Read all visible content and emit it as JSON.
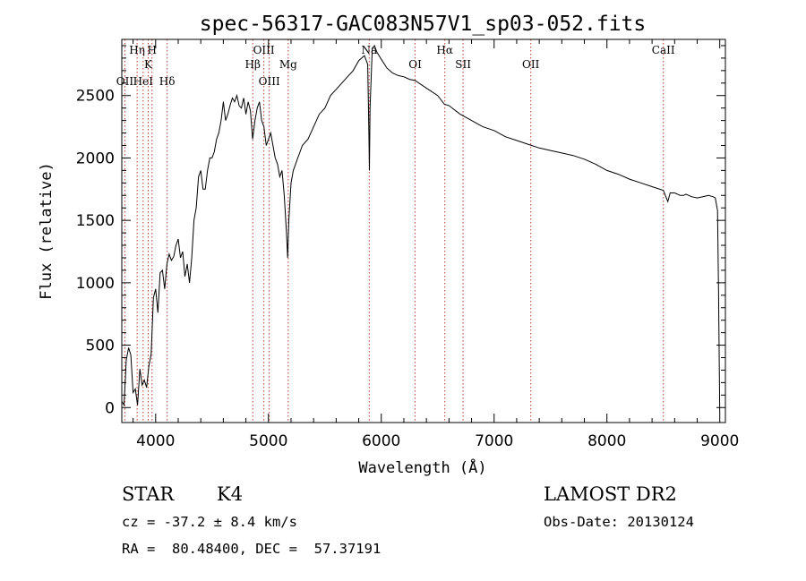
{
  "chart_data": {
    "type": "line",
    "title": "spec-56317-GAC083N57V1_sp03-052.fits",
    "xlabel": "Wavelength (Å)",
    "ylabel": "Flux (relative)",
    "xlim": [
      3700,
      9050
    ],
    "ylim": [
      -120,
      2950
    ],
    "xticks": [
      4000,
      5000,
      6000,
      7000,
      8000,
      9000
    ],
    "yticks": [
      0,
      500,
      1000,
      1500,
      2000,
      2500
    ],
    "grid": false,
    "series": [
      {
        "name": "spectrum",
        "points": [
          [
            3700,
            50
          ],
          [
            3720,
            20
          ],
          [
            3740,
            380
          ],
          [
            3760,
            480
          ],
          [
            3780,
            420
          ],
          [
            3800,
            120
          ],
          [
            3820,
            150
          ],
          [
            3840,
            20
          ],
          [
            3860,
            310
          ],
          [
            3880,
            180
          ],
          [
            3900,
            220
          ],
          [
            3920,
            160
          ],
          [
            3940,
            330
          ],
          [
            3960,
            430
          ],
          [
            3980,
            880
          ],
          [
            4000,
            950
          ],
          [
            4020,
            760
          ],
          [
            4040,
            1080
          ],
          [
            4060,
            1100
          ],
          [
            4080,
            950
          ],
          [
            4100,
            1150
          ],
          [
            4120,
            1230
          ],
          [
            4140,
            1180
          ],
          [
            4160,
            1210
          ],
          [
            4180,
            1300
          ],
          [
            4200,
            1350
          ],
          [
            4220,
            1200
          ],
          [
            4240,
            1250
          ],
          [
            4260,
            1050
          ],
          [
            4280,
            1150
          ],
          [
            4300,
            1000
          ],
          [
            4320,
            1200
          ],
          [
            4340,
            1500
          ],
          [
            4360,
            1600
          ],
          [
            4380,
            1850
          ],
          [
            4400,
            1900
          ],
          [
            4420,
            1750
          ],
          [
            4440,
            1750
          ],
          [
            4460,
            1900
          ],
          [
            4480,
            2000
          ],
          [
            4500,
            2000
          ],
          [
            4520,
            2050
          ],
          [
            4540,
            2150
          ],
          [
            4560,
            2200
          ],
          [
            4580,
            2300
          ],
          [
            4600,
            2450
          ],
          [
            4620,
            2300
          ],
          [
            4640,
            2350
          ],
          [
            4660,
            2420
          ],
          [
            4680,
            2480
          ],
          [
            4700,
            2450
          ],
          [
            4720,
            2500
          ],
          [
            4740,
            2420
          ],
          [
            4760,
            2400
          ],
          [
            4780,
            2480
          ],
          [
            4800,
            2350
          ],
          [
            4820,
            2450
          ],
          [
            4840,
            2380
          ],
          [
            4860,
            2150
          ],
          [
            4880,
            2300
          ],
          [
            4900,
            2400
          ],
          [
            4920,
            2450
          ],
          [
            4940,
            2300
          ],
          [
            4960,
            2250
          ],
          [
            4980,
            2100
          ],
          [
            5000,
            2150
          ],
          [
            5020,
            2200
          ],
          [
            5040,
            2100
          ],
          [
            5060,
            2000
          ],
          [
            5080,
            1950
          ],
          [
            5100,
            1850
          ],
          [
            5120,
            1900
          ],
          [
            5140,
            1700
          ],
          [
            5160,
            1400
          ],
          [
            5170,
            1200
          ],
          [
            5180,
            1500
          ],
          [
            5200,
            1800
          ],
          [
            5220,
            1900
          ],
          [
            5240,
            1950
          ],
          [
            5260,
            2000
          ],
          [
            5280,
            2050
          ],
          [
            5300,
            2100
          ],
          [
            5350,
            2150
          ],
          [
            5400,
            2250
          ],
          [
            5450,
            2350
          ],
          [
            5500,
            2400
          ],
          [
            5550,
            2500
          ],
          [
            5600,
            2550
          ],
          [
            5650,
            2600
          ],
          [
            5700,
            2650
          ],
          [
            5750,
            2700
          ],
          [
            5800,
            2780
          ],
          [
            5850,
            2820
          ],
          [
            5880,
            2750
          ],
          [
            5890,
            2200
          ],
          [
            5895,
            1900
          ],
          [
            5900,
            2400
          ],
          [
            5920,
            2880
          ],
          [
            5940,
            2900
          ],
          [
            5960,
            2850
          ],
          [
            5980,
            2820
          ],
          [
            6000,
            2790
          ],
          [
            6050,
            2720
          ],
          [
            6100,
            2680
          ],
          [
            6150,
            2660
          ],
          [
            6200,
            2650
          ],
          [
            6250,
            2630
          ],
          [
            6300,
            2620
          ],
          [
            6400,
            2560
          ],
          [
            6500,
            2500
          ],
          [
            6560,
            2430
          ],
          [
            6600,
            2420
          ],
          [
            6700,
            2350
          ],
          [
            6800,
            2300
          ],
          [
            6900,
            2250
          ],
          [
            7000,
            2220
          ],
          [
            7100,
            2170
          ],
          [
            7200,
            2140
          ],
          [
            7300,
            2110
          ],
          [
            7400,
            2080
          ],
          [
            7500,
            2060
          ],
          [
            7600,
            2040
          ],
          [
            7700,
            2020
          ],
          [
            7800,
            1990
          ],
          [
            7900,
            1950
          ],
          [
            8000,
            1900
          ],
          [
            8100,
            1870
          ],
          [
            8200,
            1830
          ],
          [
            8300,
            1800
          ],
          [
            8400,
            1770
          ],
          [
            8500,
            1740
          ],
          [
            8540,
            1650
          ],
          [
            8560,
            1720
          ],
          [
            8600,
            1720
          ],
          [
            8650,
            1700
          ],
          [
            8680,
            1700
          ],
          [
            8700,
            1710
          ],
          [
            8750,
            1690
          ],
          [
            8800,
            1680
          ],
          [
            8850,
            1690
          ],
          [
            8900,
            1700
          ],
          [
            8940,
            1690
          ],
          [
            8960,
            1680
          ],
          [
            8980,
            1580
          ],
          [
            8990,
            900
          ],
          [
            9000,
            -50
          ]
        ]
      }
    ],
    "line_annotations": [
      {
        "label": "OII",
        "wavelength": 3727,
        "row": 3
      },
      {
        "label": "Hη",
        "wavelength": 3836,
        "row": 1
      },
      {
        "label": "HeI",
        "wavelength": 3889,
        "row": 3
      },
      {
        "label": "K",
        "wavelength": 3934,
        "row": 2
      },
      {
        "label": "H",
        "wavelength": 3968,
        "row": 1
      },
      {
        "label": "Hδ",
        "wavelength": 4102,
        "row": 3
      },
      {
        "label": "Hβ",
        "wavelength": 4861,
        "row": 2
      },
      {
        "label": "OIII",
        "wavelength": 4959,
        "row": 1
      },
      {
        "label": "OIII",
        "wavelength": 5007,
        "row": 3
      },
      {
        "label": "Mg",
        "wavelength": 5175,
        "row": 2
      },
      {
        "label": "Na",
        "wavelength": 5893,
        "row": 1
      },
      {
        "label": "OI",
        "wavelength": 6300,
        "row": 2
      },
      {
        "label": "Hα",
        "wavelength": 6563,
        "row": 1
      },
      {
        "label": "OII",
        "wavelength": 7325,
        "row": 2
      },
      {
        "label": "SII",
        "wavelength": 6725,
        "row": 2
      },
      {
        "label": "CaII",
        "wavelength": 8500,
        "row": 1
      }
    ],
    "marker_lines": [
      3727,
      3836,
      3889,
      3934,
      3968,
      4102,
      4861,
      4959,
      5007,
      5175,
      5893,
      6300,
      6563,
      6725,
      7325,
      8500
    ]
  },
  "info": {
    "object_class": "STAR",
    "subclass": "K4",
    "survey": "LAMOST DR2",
    "redshift": "cz = -37.2 ± 8.4 km/s",
    "obs_date": "Obs-Date: 20130124",
    "coords": "RA =  80.48400, DEC =  57.37191"
  },
  "colors": {
    "spectrum": "#000000",
    "marker": "#c0392b",
    "axis": "#000000"
  }
}
